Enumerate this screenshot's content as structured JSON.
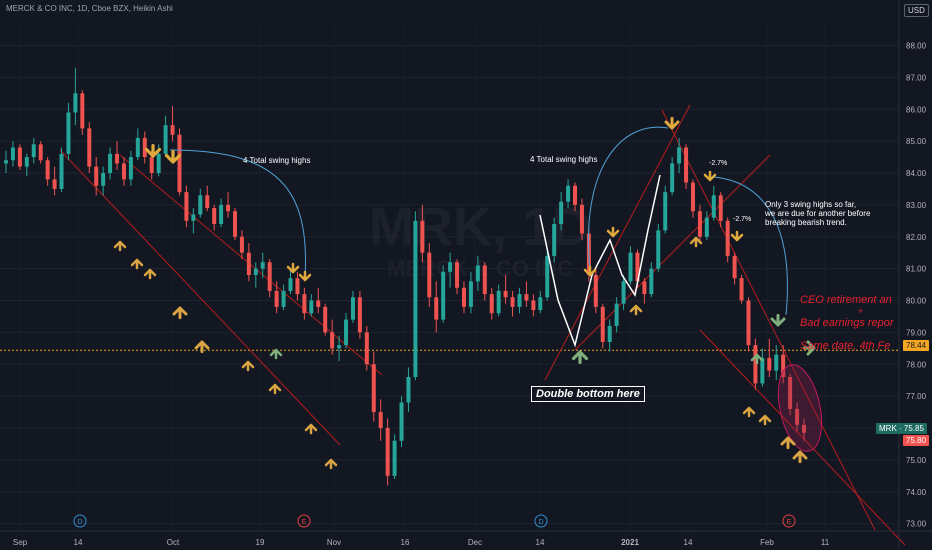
{
  "header": {
    "symbol_line": "MERCK & CO INC, 1D, Cboe BZX, Heikin Ashi",
    "currency": "USD"
  },
  "watermark": {
    "ticker": "MRK, 1D",
    "company": "MERCK & CO INC"
  },
  "colors": {
    "background": "#131722",
    "candle_up": "#26a69a",
    "candle_down": "#ef5350",
    "channel_line": "#b71c1c",
    "arrow_down": "#e0a93b",
    "arrow_up": "#d9a441",
    "arrow_green": "#7fb07c",
    "arc": "#4fa3d8",
    "last_price": "#f5a623",
    "highlight_ellipse": "#8e1f4a"
  },
  "chart_data": {
    "type": "candlestick",
    "ylim": [
      72.8,
      88.8
    ],
    "y_ticks": [
      "73.00",
      "74.00",
      "75.00",
      "76.00",
      "77.00",
      "78.00",
      "79.00",
      "80.00",
      "81.00",
      "82.00",
      "83.00",
      "84.00",
      "85.00",
      "86.00",
      "87.00",
      "88.00"
    ],
    "x_ticks": [
      "Sep",
      "14",
      "Oct",
      "19",
      "Nov",
      "16",
      "Dec",
      "14",
      "2021",
      "14",
      "Feb",
      "11"
    ],
    "event_markers": [
      {
        "label": "D",
        "x": "Sep 14"
      },
      {
        "label": "E",
        "x": "Oct 27"
      },
      {
        "label": "D",
        "x": "Dec 14"
      },
      {
        "label": "E",
        "x": "Feb 4"
      }
    ],
    "reference_line": 78.44,
    "price_labels": {
      "reference": "78.44",
      "current": "MRK · 75.85",
      "close": "75.80"
    },
    "ohlc": [
      [
        84.3,
        84.7,
        84.0,
        84.4
      ],
      [
        84.4,
        85.0,
        84.2,
        84.8
      ],
      [
        84.8,
        84.9,
        84.1,
        84.2
      ],
      [
        84.2,
        84.6,
        83.9,
        84.5
      ],
      [
        84.5,
        85.1,
        84.3,
        84.9
      ],
      [
        84.9,
        85.0,
        84.3,
        84.4
      ],
      [
        84.4,
        84.5,
        83.6,
        83.8
      ],
      [
        83.8,
        84.2,
        83.3,
        83.5
      ],
      [
        83.5,
        84.8,
        83.4,
        84.6
      ],
      [
        84.6,
        86.2,
        84.4,
        85.9
      ],
      [
        85.9,
        87.3,
        85.5,
        86.5
      ],
      [
        86.5,
        86.6,
        85.2,
        85.4
      ],
      [
        85.4,
        85.6,
        84.0,
        84.2
      ],
      [
        84.2,
        84.5,
        83.3,
        83.6
      ],
      [
        83.6,
        84.2,
        83.3,
        84.0
      ],
      [
        84.0,
        84.8,
        83.8,
        84.6
      ],
      [
        84.6,
        85.0,
        84.1,
        84.3
      ],
      [
        84.3,
        84.5,
        83.6,
        83.8
      ],
      [
        83.8,
        84.7,
        83.6,
        84.5
      ],
      [
        84.5,
        85.4,
        84.4,
        85.1
      ],
      [
        85.1,
        85.3,
        84.3,
        84.5
      ],
      [
        84.5,
        84.7,
        83.8,
        84.0
      ],
      [
        84.0,
        84.9,
        83.9,
        84.6
      ],
      [
        84.6,
        85.8,
        84.5,
        85.5
      ],
      [
        85.5,
        86.1,
        85.0,
        85.2
      ],
      [
        85.2,
        85.4,
        83.3,
        83.4
      ],
      [
        83.4,
        83.6,
        82.3,
        82.5
      ],
      [
        82.5,
        82.9,
        82.1,
        82.7
      ],
      [
        82.7,
        83.5,
        82.6,
        83.3
      ],
      [
        83.3,
        83.6,
        82.8,
        82.9
      ],
      [
        82.9,
        83.0,
        82.2,
        82.4
      ],
      [
        82.4,
        83.2,
        82.3,
        83.0
      ],
      [
        83.0,
        83.4,
        82.6,
        82.8
      ],
      [
        82.8,
        82.9,
        81.9,
        82.0
      ],
      [
        82.0,
        82.2,
        81.3,
        81.5
      ],
      [
        81.5,
        81.8,
        80.6,
        80.8
      ],
      [
        80.8,
        81.2,
        80.4,
        81.0
      ],
      [
        81.0,
        81.5,
        80.7,
        81.2
      ],
      [
        81.2,
        81.3,
        80.1,
        80.3
      ],
      [
        80.3,
        80.6,
        79.6,
        79.8
      ],
      [
        79.8,
        80.5,
        79.7,
        80.3
      ],
      [
        80.3,
        81.0,
        80.2,
        80.7
      ],
      [
        80.7,
        80.9,
        80.0,
        80.2
      ],
      [
        80.2,
        80.4,
        79.4,
        79.6
      ],
      [
        79.6,
        80.2,
        79.5,
        80.0
      ],
      [
        80.0,
        80.4,
        79.6,
        79.8
      ],
      [
        79.8,
        79.9,
        78.9,
        79.0
      ],
      [
        79.0,
        79.4,
        78.3,
        78.5
      ],
      [
        78.5,
        78.9,
        78.1,
        78.6
      ],
      [
        78.6,
        79.6,
        78.5,
        79.4
      ],
      [
        79.4,
        80.3,
        79.3,
        80.1
      ],
      [
        80.1,
        80.3,
        78.8,
        79.0
      ],
      [
        79.0,
        79.2,
        77.8,
        78.0
      ],
      [
        78.0,
        78.4,
        76.2,
        76.5
      ],
      [
        76.5,
        76.9,
        75.6,
        76.0
      ],
      [
        76.0,
        76.3,
        74.2,
        74.5
      ],
      [
        74.5,
        75.8,
        74.4,
        75.6
      ],
      [
        75.6,
        77.0,
        75.4,
        76.8
      ],
      [
        76.8,
        77.9,
        76.5,
        77.6
      ],
      [
        77.6,
        82.8,
        77.5,
        82.5
      ],
      [
        82.5,
        83.0,
        81.2,
        81.5
      ],
      [
        81.5,
        81.8,
        79.8,
        80.1
      ],
      [
        80.1,
        80.6,
        79.0,
        79.4
      ],
      [
        79.4,
        81.1,
        79.3,
        80.9
      ],
      [
        80.9,
        81.5,
        80.4,
        81.2
      ],
      [
        81.2,
        81.3,
        80.2,
        80.4
      ],
      [
        80.4,
        80.6,
        79.6,
        79.8
      ],
      [
        79.8,
        80.9,
        79.6,
        80.6
      ],
      [
        80.6,
        81.4,
        80.3,
        81.1
      ],
      [
        81.1,
        81.2,
        80.0,
        80.2
      ],
      [
        80.2,
        80.4,
        79.4,
        79.6
      ],
      [
        79.6,
        80.5,
        79.5,
        80.3
      ],
      [
        80.3,
        80.8,
        79.9,
        80.1
      ],
      [
        80.1,
        80.3,
        79.5,
        79.8
      ],
      [
        79.8,
        80.4,
        79.6,
        80.2
      ],
      [
        80.2,
        80.6,
        79.8,
        80.0
      ],
      [
        80.0,
        80.2,
        79.5,
        79.7
      ],
      [
        79.7,
        80.3,
        79.6,
        80.1
      ],
      [
        80.1,
        81.6,
        80.0,
        81.4
      ],
      [
        81.4,
        82.6,
        81.2,
        82.4
      ],
      [
        82.4,
        83.4,
        82.2,
        83.1
      ],
      [
        83.1,
        83.8,
        82.9,
        83.6
      ],
      [
        83.6,
        83.7,
        82.8,
        83.0
      ],
      [
        83.0,
        83.2,
        81.9,
        82.1
      ],
      [
        82.1,
        82.3,
        80.6,
        80.8
      ],
      [
        80.8,
        81.0,
        79.6,
        79.8
      ],
      [
        79.8,
        79.9,
        78.5,
        78.7
      ],
      [
        78.7,
        79.4,
        78.4,
        79.2
      ],
      [
        79.2,
        80.1,
        79.0,
        79.9
      ],
      [
        79.9,
        80.8,
        79.7,
        80.6
      ],
      [
        80.6,
        81.7,
        80.5,
        81.5
      ],
      [
        81.5,
        81.6,
        80.4,
        80.6
      ],
      [
        80.6,
        80.7,
        79.9,
        80.2
      ],
      [
        80.2,
        81.2,
        80.1,
        81.0
      ],
      [
        81.0,
        82.4,
        80.9,
        82.2
      ],
      [
        82.2,
        83.6,
        82.1,
        83.4
      ],
      [
        83.4,
        84.5,
        83.3,
        84.3
      ],
      [
        84.3,
        85.1,
        84.0,
        84.8
      ],
      [
        84.8,
        84.9,
        83.5,
        83.7
      ],
      [
        83.7,
        83.8,
        82.6,
        82.8
      ],
      [
        82.8,
        83.0,
        81.8,
        82.0
      ],
      [
        82.0,
        82.8,
        81.9,
        82.6
      ],
      [
        82.6,
        83.6,
        82.5,
        83.3
      ],
      [
        83.3,
        83.4,
        82.3,
        82.5
      ],
      [
        82.5,
        82.6,
        81.2,
        81.4
      ],
      [
        81.4,
        81.5,
        80.5,
        80.7
      ],
      [
        80.7,
        80.8,
        79.9,
        80.0
      ],
      [
        80.0,
        80.1,
        78.4,
        78.6
      ],
      [
        78.6,
        78.8,
        77.2,
        77.4
      ],
      [
        77.4,
        78.5,
        77.3,
        78.2
      ],
      [
        78.2,
        78.8,
        77.6,
        77.8
      ],
      [
        77.8,
        78.6,
        77.5,
        78.3
      ],
      [
        78.3,
        78.6,
        77.4,
        77.6
      ],
      [
        77.6,
        77.7,
        76.4,
        76.6
      ],
      [
        76.6,
        76.8,
        75.9,
        76.1
      ],
      [
        76.1,
        76.3,
        75.6,
        75.85
      ]
    ]
  },
  "annotations": {
    "swing_left": "4 Total swing highs",
    "swing_mid": "4 Total swing highs",
    "pct_1": "-2.7%",
    "pct_2": "-2.7%",
    "swing_note_1": "Only 3 swing highs so far,",
    "swing_note_2": "we are due for another before",
    "swing_note_3": "breaking bearish trend.",
    "double_bottom": "Double bottom here",
    "ceo_line": "CEO retirement an",
    "plus": "+",
    "earnings_line": "Bad earnings repor",
    "date_line": "Same date, 4th Fe"
  }
}
